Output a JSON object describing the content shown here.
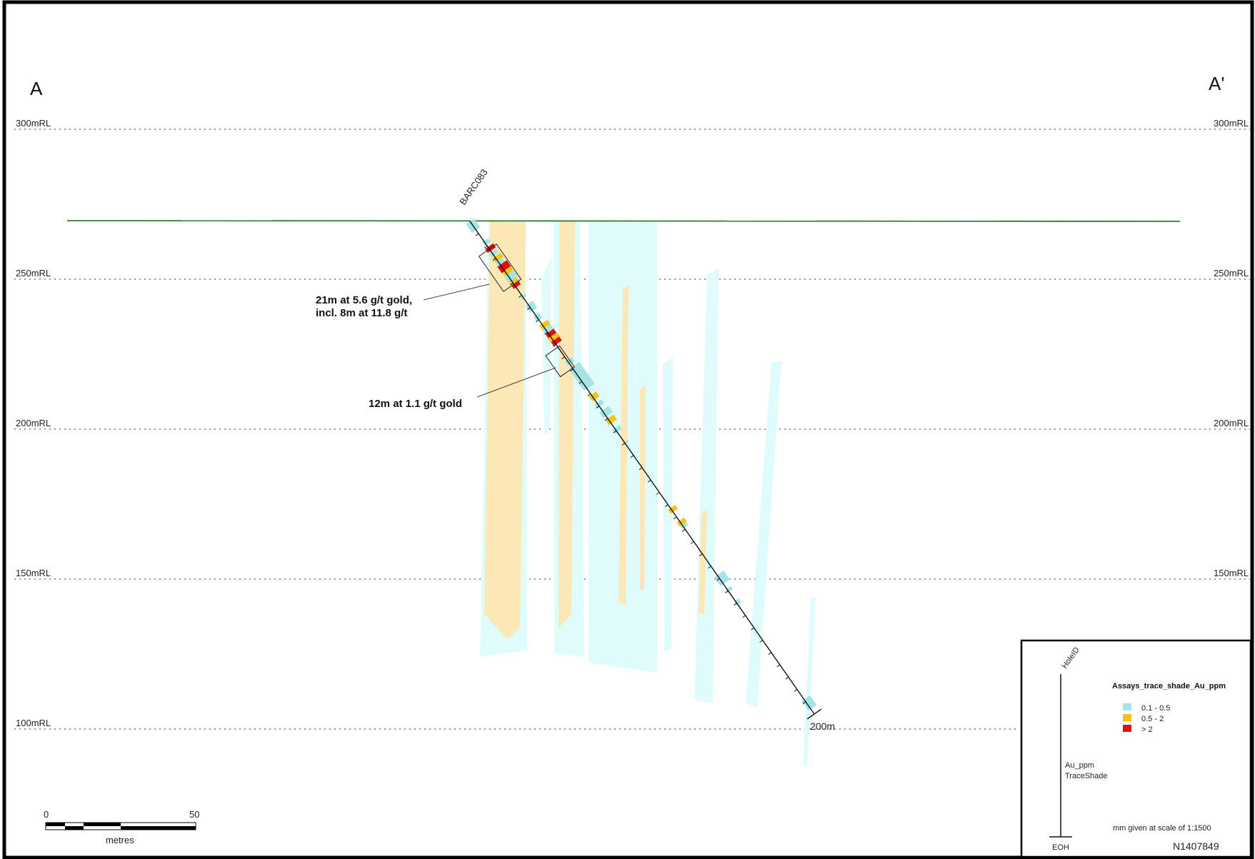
{
  "section": {
    "start_label": "A",
    "end_label": "A'",
    "rl_levels": [
      {
        "value": 300,
        "label": "300mRL"
      },
      {
        "value": 250,
        "label": "250mRL"
      },
      {
        "value": 200,
        "label": "200mRL"
      },
      {
        "value": 150,
        "label": "150mRL"
      },
      {
        "value": 100,
        "label": "100mRL"
      }
    ]
  },
  "drillhole": {
    "hole_id": "BARC083",
    "end_depth_label": "200m"
  },
  "intercepts": [
    {
      "line1": "21m at 5.6 g/t gold,",
      "line2": "incl. 8m at 11.8 g/t"
    },
    {
      "line1": "12m at 1.1 g/t gold",
      "line2": ""
    }
  ],
  "scale_bar": {
    "start": "0",
    "end": "50",
    "unit": "metres"
  },
  "legend": {
    "hole_id_label": "HoleID",
    "title": "Assays_trace_shade_Au_ppm",
    "items": [
      {
        "label": "0.1 - 0.5",
        "color": "#a6e3e6"
      },
      {
        "label": "0.5 - 2",
        "color": "#f2c418"
      },
      {
        "label": "> 2",
        "color": "#e01010"
      }
    ],
    "trace_label_1": "Au_ppm",
    "trace_label_2": "TraceShade",
    "eoh_label": "EOH",
    "scale_note": "mm given at scale of 1:1500",
    "map_id": "N1407849"
  },
  "colors": {
    "topography": "#2e7d32",
    "low_grade_zone": "#e0fbfb",
    "mid_grade_zone": "#fbe8b6",
    "frame": "#000000"
  }
}
